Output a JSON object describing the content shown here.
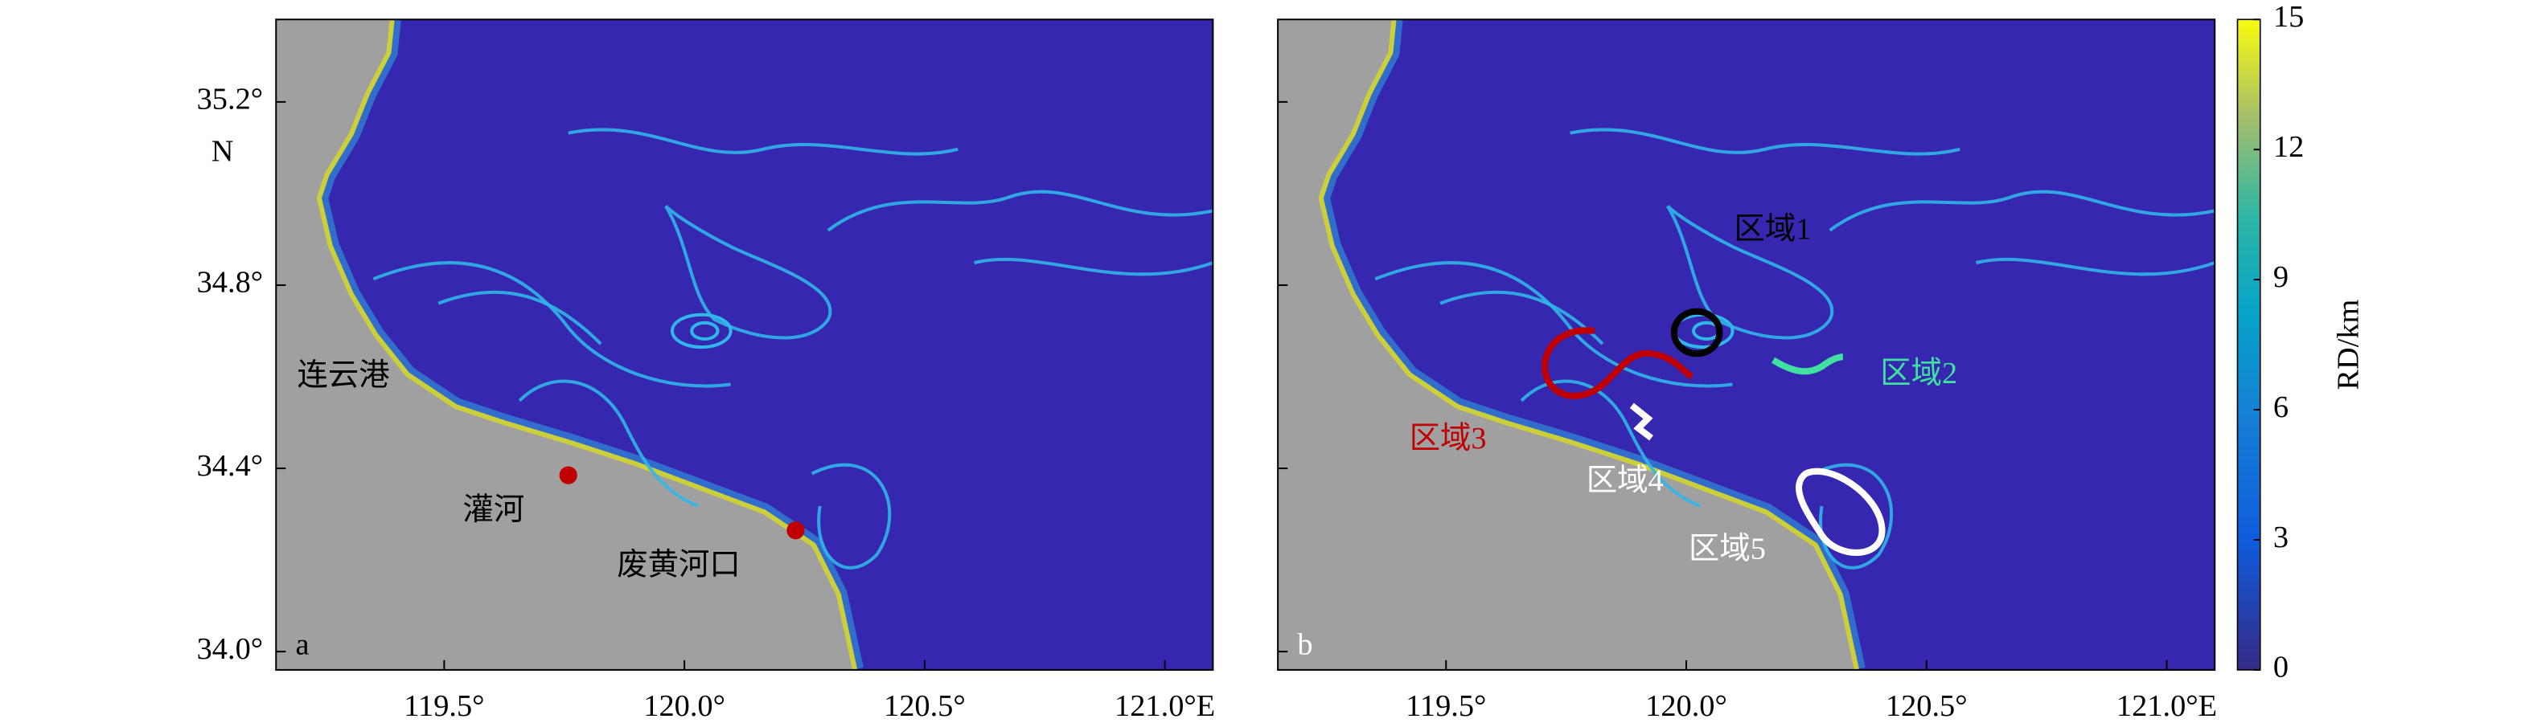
{
  "panels": [
    {
      "label": "a",
      "annotations": [
        "连云港",
        "灌河",
        "废黄河口"
      ]
    },
    {
      "label": "b",
      "annotations": [
        "区域1",
        "区域2",
        "区域3",
        "区域4",
        "区域5"
      ]
    }
  ],
  "axes": {
    "xlim": [
      119.15,
      121.1
    ],
    "ylim": [
      33.96,
      35.38
    ],
    "xticks": [
      {
        "value": 119.5,
        "label": "119.5°"
      },
      {
        "value": 120,
        "label": "120.0°"
      },
      {
        "value": 120.5,
        "label": "120.5°"
      },
      {
        "value": 121,
        "label": "121.0°E"
      }
    ],
    "yticks": [
      {
        "value": 34,
        "label": "34.0°"
      },
      {
        "value": 34.4,
        "label": "34.4°"
      },
      {
        "value": 34.8,
        "label": "34.8°"
      },
      {
        "value": 35.2,
        "label": "35.2°"
      }
    ],
    "y_unit_label": "N"
  },
  "colorbar": {
    "label": "RD/km",
    "lim": [
      0,
      15
    ],
    "ticks": [
      0,
      3,
      6,
      9,
      12,
      15
    ]
  }
}
